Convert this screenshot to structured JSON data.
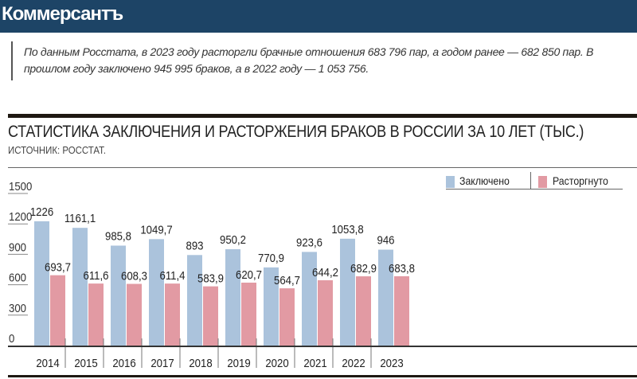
{
  "header": {
    "logo": "Коммерсантъ"
  },
  "quote": "По данным Росстата, в 2023 году расторгли брачные отношения 683 796 пар, а годом ранее — 682 850 пар. В прошлом году заключено 945 995 браков, а в 2022 году — 1 053 756.",
  "chart_data": {
    "type": "bar",
    "title": "СТАТИСТИКА ЗАКЛЮЧЕНИЯ И РАСТОРЖЕНИЯ БРАКОВ В РОССИИ ЗА 10 ЛЕТ (ТЫС.)",
    "source": "ИСТОЧНИК: РОССТАТ.",
    "categories": [
      "2014",
      "2015",
      "2016",
      "2017",
      "2018",
      "2019",
      "2020",
      "2021",
      "2022",
      "2023"
    ],
    "series": [
      {
        "name": "Заключено",
        "color": "#abc3dc",
        "values": [
          1226,
          1161.1,
          985.8,
          1049.7,
          893,
          950.2,
          770.9,
          923.6,
          1053.8,
          946
        ],
        "labels": [
          "1226",
          "1161,1",
          "985,8",
          "1049,7",
          "893",
          "950,2",
          "770,9",
          "923,6",
          "1053,8",
          "946"
        ]
      },
      {
        "name": "Расторгнуто",
        "color": "#e29aa3",
        "values": [
          693.7,
          611.6,
          608.3,
          611.4,
          583.9,
          620.7,
          564.7,
          644.2,
          682.9,
          683.8
        ],
        "labels": [
          "693,7",
          "611,6",
          "608,3",
          "611,4",
          "583,9",
          "620,7",
          "564,7",
          "644,2",
          "682,9",
          "683,8"
        ]
      }
    ],
    "yticks": [
      "0",
      "300",
      "600",
      "900",
      "1200",
      "1500"
    ],
    "ylim": [
      0,
      1500
    ],
    "legend": "top-right"
  }
}
